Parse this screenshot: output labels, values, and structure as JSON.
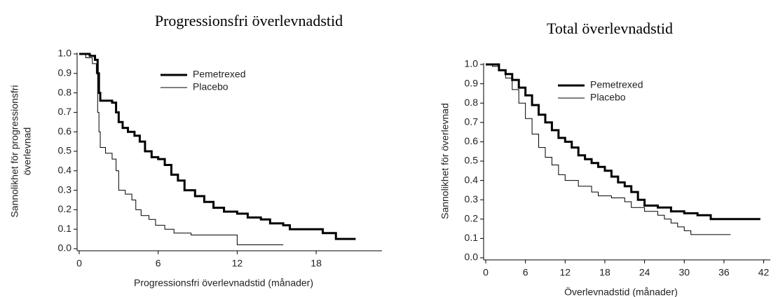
{
  "chart_data": [
    {
      "type": "line",
      "drawstyle": "steps-post",
      "title": "Progressionsfri överlevnadstid",
      "xlabel": "Progressionsfri överlevnadstid (månader)",
      "ylabel": [
        "Sannolikhet för progressionsfri",
        "överlevnad"
      ],
      "xlim": [
        0,
        23
      ],
      "xticks": [
        0,
        6,
        12,
        18
      ],
      "ylim": [
        0,
        1
      ],
      "yticks": [
        {
          "value": 0,
          "label": "0.0"
        },
        0.1,
        0.2,
        0.3,
        0.4,
        0.5,
        0.6,
        0.7,
        0.8,
        0.9,
        {
          "value": 1,
          "label": "1.0"
        }
      ],
      "legend": "upper center",
      "series": [
        {
          "name": "Pemetrexed",
          "color": "#000000",
          "linewidth": 3,
          "x": [
            0,
            0.8,
            1.2,
            1.4,
            1.5,
            1.6,
            2.5,
            2.8,
            3.0,
            3.3,
            3.7,
            4.2,
            4.6,
            5.0,
            5.5,
            6.0,
            6.5,
            7.0,
            7.5,
            8.0,
            8.8,
            9.5,
            10.2,
            11.0,
            12.0,
            12.8,
            13.8,
            14.5,
            15.5,
            16.0,
            18.5,
            19.5,
            21.0
          ],
          "values": [
            1.0,
            0.99,
            0.97,
            0.9,
            0.8,
            0.76,
            0.75,
            0.7,
            0.65,
            0.62,
            0.6,
            0.58,
            0.55,
            0.5,
            0.47,
            0.46,
            0.43,
            0.38,
            0.35,
            0.3,
            0.27,
            0.24,
            0.21,
            0.19,
            0.18,
            0.16,
            0.15,
            0.13,
            0.12,
            0.1,
            0.08,
            0.05,
            0.05
          ]
        },
        {
          "name": "Placebo",
          "color": "#000000",
          "linewidth": 1,
          "x": [
            0,
            0.5,
            1.0,
            1.3,
            1.4,
            1.5,
            1.6,
            2.0,
            2.5,
            2.8,
            3.0,
            3.5,
            4.0,
            4.3,
            4.7,
            5.3,
            5.8,
            6.5,
            7.2,
            8.5,
            11.5,
            12.0,
            15.5
          ],
          "values": [
            1.0,
            0.98,
            0.95,
            0.9,
            0.7,
            0.6,
            0.52,
            0.49,
            0.46,
            0.4,
            0.3,
            0.28,
            0.25,
            0.2,
            0.17,
            0.15,
            0.12,
            0.1,
            0.08,
            0.07,
            0.07,
            0.02,
            0.02
          ]
        }
      ]
    },
    {
      "type": "line",
      "drawstyle": "steps-post",
      "title": "Total överlevnadstid",
      "xlabel": "Överlevnadstid (månader)",
      "ylabel": [
        "Sannolikhet för överlevnad"
      ],
      "xlim": [
        0,
        43
      ],
      "xticks": [
        0,
        6,
        12,
        18,
        24,
        30,
        36,
        42
      ],
      "ylim": [
        0,
        1
      ],
      "yticks": [
        {
          "value": 0,
          "label": "0.0"
        },
        0.1,
        0.2,
        0.3,
        0.4,
        0.5,
        0.6,
        0.7,
        0.8,
        0.9,
        {
          "value": 1,
          "label": "1.0"
        }
      ],
      "legend": "upper center",
      "series": [
        {
          "name": "Pemetrexed",
          "color": "#000000",
          "linewidth": 3,
          "x": [
            0,
            1,
            2,
            3,
            4,
            5,
            6,
            7,
            8,
            9,
            10,
            11,
            12,
            13,
            14,
            15,
            16,
            17,
            18,
            19,
            20,
            21,
            22,
            23,
            24,
            26,
            28,
            30,
            32,
            34,
            41.5
          ],
          "values": [
            1.0,
            1.0,
            0.97,
            0.95,
            0.92,
            0.88,
            0.84,
            0.79,
            0.74,
            0.7,
            0.66,
            0.62,
            0.6,
            0.57,
            0.53,
            0.51,
            0.49,
            0.47,
            0.45,
            0.42,
            0.39,
            0.37,
            0.34,
            0.3,
            0.27,
            0.26,
            0.24,
            0.23,
            0.22,
            0.2,
            0.2
          ]
        },
        {
          "name": "Placebo",
          "color": "#000000",
          "linewidth": 1,
          "x": [
            0,
            1,
            2,
            3,
            4,
            5,
            6,
            7,
            8,
            9,
            10,
            11,
            12,
            14,
            16,
            17,
            19,
            21,
            22,
            24,
            26,
            27,
            28,
            29,
            30,
            31,
            37
          ],
          "values": [
            1.0,
            0.99,
            0.97,
            0.93,
            0.87,
            0.8,
            0.72,
            0.64,
            0.57,
            0.52,
            0.48,
            0.43,
            0.4,
            0.37,
            0.34,
            0.32,
            0.31,
            0.29,
            0.26,
            0.24,
            0.22,
            0.2,
            0.18,
            0.16,
            0.14,
            0.12,
            0.12
          ]
        }
      ]
    }
  ]
}
